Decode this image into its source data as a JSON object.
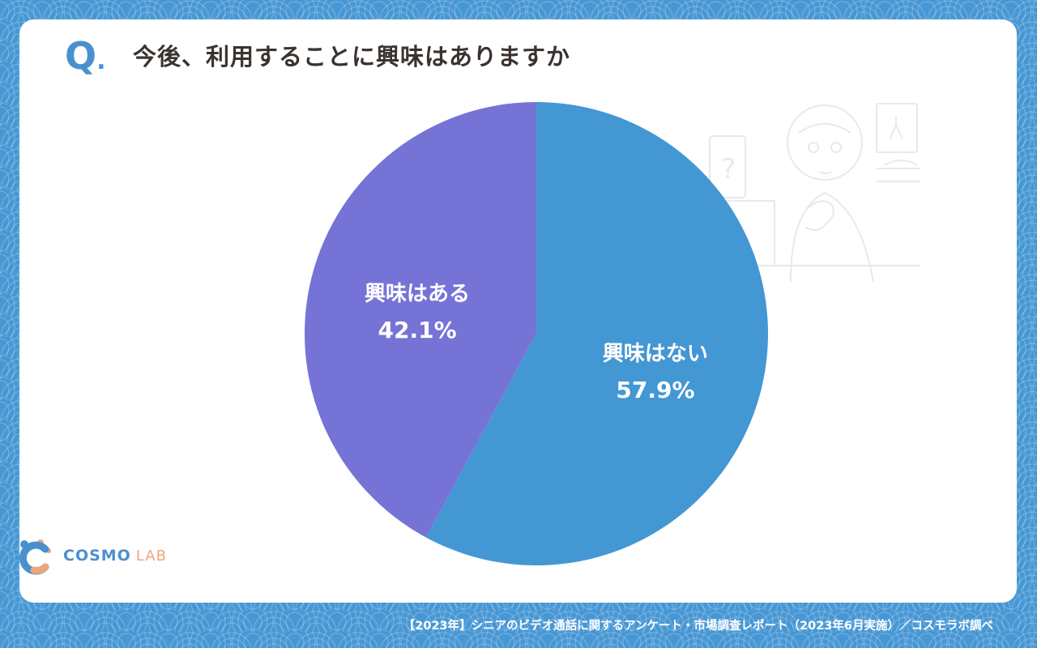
{
  "header": {
    "q_mark": "Q",
    "q_dot": ".",
    "question": "今後、利用することに興味はありますか"
  },
  "chart_data": {
    "type": "pie",
    "title": "今後、利用することに興味はありますか",
    "categories": [
      "興味はない",
      "興味はある"
    ],
    "values": [
      57.9,
      42.1
    ],
    "labels": [
      "57.9%",
      "42.1%"
    ],
    "colors": [
      "#4397d3",
      "#7673d7"
    ],
    "start": "12 o'clock",
    "direction": "clockwise"
  },
  "logo": {
    "part1": "COSMO",
    "part2": "LAB",
    "colors": {
      "blue": "#4a90cf",
      "orange": "#e9a87a"
    }
  },
  "footer": {
    "source": "【2023年】シニアのビデオ通話に関するアンケート・市場調査レポート（2023年6月実施）／コスモラボ調べ"
  },
  "colors": {
    "background": "#4797d4",
    "card": "#ffffff",
    "title_text": "#3a3330",
    "accent": "#4a90cf"
  }
}
